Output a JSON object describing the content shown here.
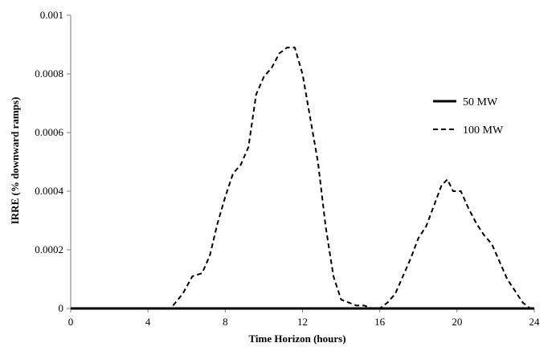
{
  "chart_data": {
    "type": "line",
    "xlabel": "Time Horizon (hours)",
    "ylabel": "IRRE (% downward ramps)",
    "xlim": [
      0,
      24
    ],
    "ylim": [
      0,
      0.001
    ],
    "x_ticks": [
      "0",
      "4",
      "8",
      "12",
      "16",
      "20",
      "24"
    ],
    "y_ticks": [
      "0",
      "0.0002",
      "0.0004",
      "0.0006",
      "0.0008",
      "0.001"
    ],
    "grid": false,
    "legend_position": "right",
    "series": [
      {
        "name": "50 MW",
        "style": "solid",
        "color": "#000000",
        "x": [
          0,
          24
        ],
        "y": [
          0,
          0
        ]
      },
      {
        "name": "100 MW",
        "style": "dashed",
        "color": "#000000",
        "x": [
          5.3,
          5.8,
          6.3,
          6.8,
          7.2,
          7.6,
          8.0,
          8.4,
          8.8,
          9.2,
          9.6,
          10.0,
          10.4,
          10.8,
          11.2,
          11.6,
          12.0,
          12.4,
          12.8,
          13.2,
          13.6,
          14.0,
          14.4,
          14.8,
          15.2,
          15.6,
          16.0,
          16.4,
          16.8,
          17.2,
          17.6,
          18.0,
          18.4,
          18.8,
          19.2,
          19.5,
          19.8,
          20.2,
          20.6,
          21.0,
          21.4,
          21.8,
          22.2,
          22.6,
          23.0,
          23.4,
          23.8
        ],
        "y": [
          1e-05,
          5e-05,
          0.00011,
          0.00012,
          0.00018,
          0.00029,
          0.00038,
          0.00046,
          0.00049,
          0.00055,
          0.00073,
          0.00079,
          0.00082,
          0.00087,
          0.00089,
          0.00089,
          0.0008,
          0.00065,
          0.0005,
          0.00028,
          0.00011,
          3e-05,
          2e-05,
          1e-05,
          1e-05,
          0.0,
          0.0,
          2e-05,
          5e-05,
          0.00011,
          0.00017,
          0.00024,
          0.00028,
          0.00035,
          0.00042,
          0.00044,
          0.0004,
          0.0004,
          0.00034,
          0.00029,
          0.00025,
          0.00022,
          0.00016,
          0.0001,
          6e-05,
          2e-05,
          0.0
        ]
      }
    ]
  }
}
